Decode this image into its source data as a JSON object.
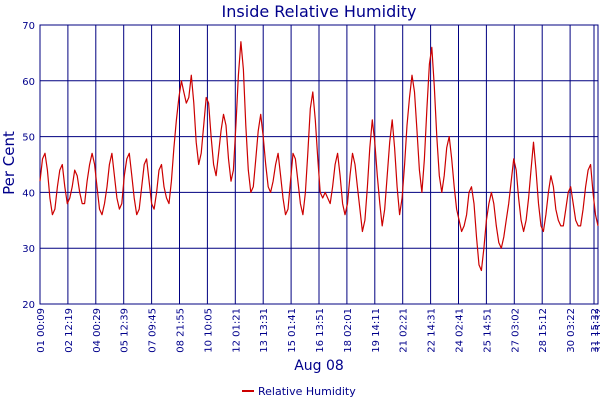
{
  "chart_data": {
    "type": "line",
    "title": "Inside Relative Humidity",
    "ylabel": "Per Cent",
    "xlabel": "Aug 08",
    "ylim": [
      20,
      70
    ],
    "y_ticks": [
      "20",
      "30",
      "40",
      "50",
      "60",
      "70"
    ],
    "x_ticks": [
      "01 00:09",
      "02 12:19",
      "04 00:29",
      "05 12:39",
      "07 09:45",
      "08 21:55",
      "10 10:05",
      "12 01:21",
      "13 13:31",
      "15 01:41",
      "16 13:51",
      "18 02:01",
      "19 14:11",
      "21 02:21",
      "22 14:31",
      "24 02:41",
      "25 14:51",
      "27 03:02",
      "28 15:12",
      "30 03:22",
      "31 15:32",
      "31 15:32"
    ],
    "grid": true,
    "legend_position": "bottom-center",
    "line_color": "#cc0000",
    "grid_color": "#000080",
    "series": [
      {
        "name": "Relative Humidity",
        "values": [
          42,
          46,
          47,
          44,
          39,
          36,
          37,
          41,
          44,
          45,
          41,
          38,
          39,
          41,
          44,
          43,
          40,
          38,
          38,
          42,
          45,
          47,
          45,
          41,
          37,
          36,
          38,
          41,
          45,
          47,
          43,
          39,
          37,
          38,
          43,
          46,
          47,
          43,
          39,
          36,
          37,
          41,
          45,
          46,
          42,
          38,
          37,
          40,
          44,
          45,
          41,
          39,
          38,
          42,
          48,
          53,
          57,
          60,
          58,
          56,
          57,
          61,
          56,
          49,
          45,
          47,
          52,
          57,
          56,
          50,
          45,
          43,
          47,
          51,
          54,
          52,
          46,
          42,
          44,
          52,
          61,
          67,
          62,
          52,
          44,
          40,
          41,
          46,
          51,
          54,
          50,
          45,
          41,
          40,
          42,
          45,
          47,
          43,
          39,
          36,
          37,
          42,
          47,
          46,
          42,
          38,
          36,
          40,
          47,
          55,
          58,
          53,
          46,
          40,
          39,
          40,
          39,
          38,
          41,
          45,
          47,
          43,
          38,
          36,
          38,
          43,
          47,
          45,
          41,
          37,
          33,
          35,
          41,
          48,
          53,
          49,
          43,
          38,
          34,
          37,
          43,
          49,
          53,
          48,
          41,
          36,
          39,
          45,
          52,
          57,
          61,
          58,
          51,
          44,
          40,
          46,
          55,
          63,
          66,
          59,
          50,
          43,
          40,
          43,
          48,
          50,
          46,
          41,
          37,
          35,
          33,
          34,
          36,
          40,
          41,
          38,
          32,
          27,
          26,
          30,
          35,
          38,
          40,
          38,
          34,
          31,
          30,
          32,
          35,
          38,
          42,
          46,
          44,
          39,
          35,
          33,
          35,
          39,
          44,
          49,
          44,
          38,
          34,
          33,
          36,
          40,
          43,
          41,
          37,
          35,
          34,
          34,
          37,
          40,
          41,
          38,
          35,
          34,
          34,
          37,
          41,
          44,
          45,
          40,
          36,
          34
        ]
      }
    ]
  }
}
